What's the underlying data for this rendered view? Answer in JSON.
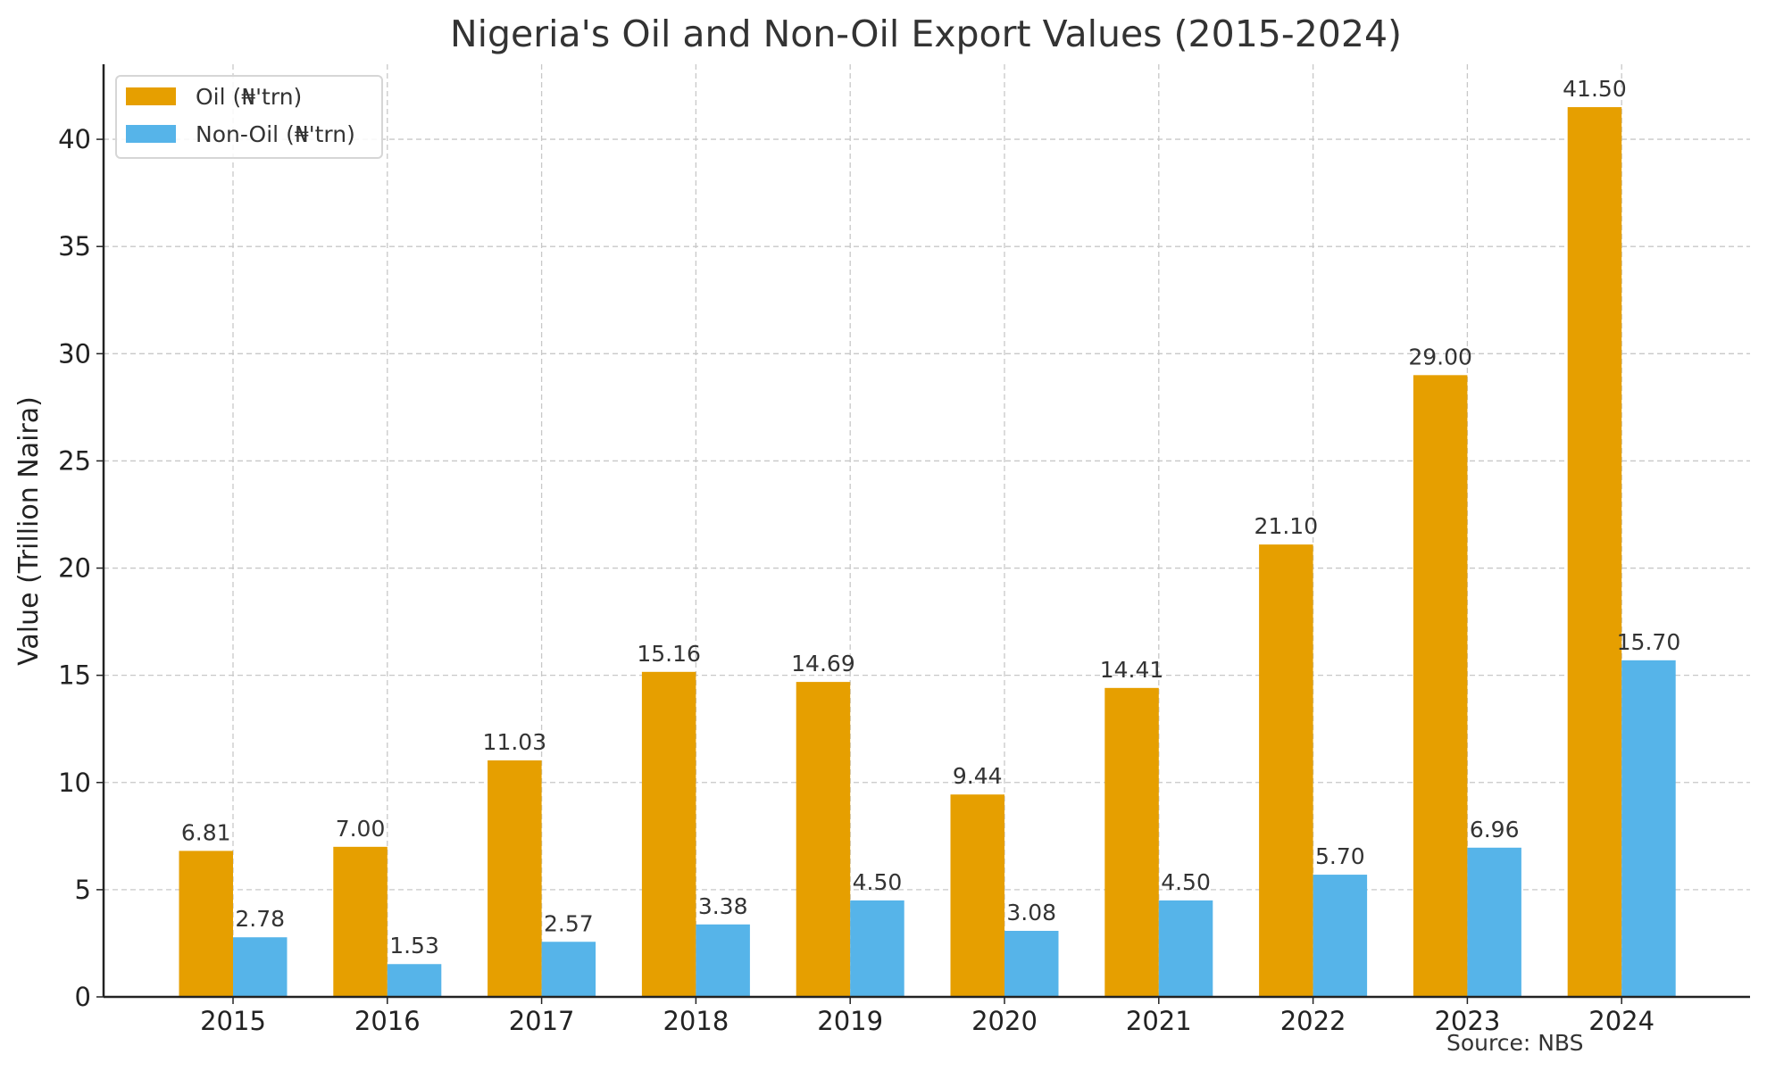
{
  "chart_data": {
    "type": "bar",
    "title": "Nigeria's Oil and Non-Oil Export Values (2015-2024)",
    "xlabel": "",
    "ylabel": "Value (Trillion Naira)",
    "categories": [
      "2015",
      "2016",
      "2017",
      "2018",
      "2019",
      "2020",
      "2021",
      "2022",
      "2023",
      "2024"
    ],
    "series": [
      {
        "name": "Oil (₦'trn)",
        "color": "#E69F00",
        "values": [
          6.81,
          7.0,
          11.03,
          15.16,
          14.69,
          9.44,
          14.41,
          21.1,
          29.0,
          41.5
        ],
        "labels": [
          "6.81",
          "7.00",
          "11.03",
          "15.16",
          "14.69",
          "9.44",
          "14.41",
          "21.10",
          "29.00",
          "41.50"
        ]
      },
      {
        "name": "Non-Oil (₦'trn)",
        "color": "#56B4E9",
        "values": [
          2.78,
          1.53,
          2.57,
          3.38,
          4.5,
          3.08,
          4.5,
          5.7,
          6.96,
          15.7
        ],
        "labels": [
          "2.78",
          "1.53",
          "2.57",
          "3.38",
          "4.50",
          "3.08",
          "4.50",
          "5.70",
          "6.96",
          "15.70"
        ]
      }
    ],
    "ylim": [
      0,
      43.5
    ],
    "yticks": [
      0,
      5,
      10,
      15,
      20,
      25,
      30,
      35,
      40
    ],
    "ytick_labels": [
      "0",
      "5",
      "10",
      "15",
      "20",
      "25",
      "30",
      "35",
      "40"
    ],
    "grid": true,
    "legend_position": "top-left",
    "annotation": "Source: NBS"
  }
}
